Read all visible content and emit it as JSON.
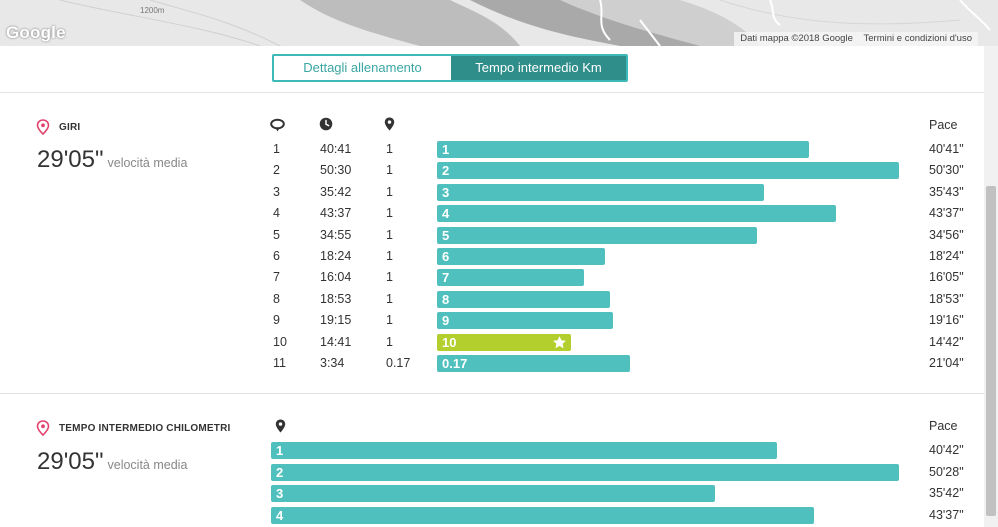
{
  "map": {
    "logo": "Google",
    "altitude_label": "1200m",
    "attribution": "Dati mappa ©2018 Google",
    "terms": "Termini e condizioni d'uso"
  },
  "tabs": [
    {
      "label": "Dettagli allenamento",
      "active": false
    },
    {
      "label": "Tempo intermedio Km",
      "active": true
    }
  ],
  "laps": {
    "title": "GIRI",
    "avg_value": "29'05\"",
    "avg_label": "velocità media",
    "columns": {
      "lap_icon": "lap-icon",
      "time_icon": "clock-icon",
      "distance_icon": "location-pin-icon",
      "pace": "Pace"
    },
    "rows": [
      {
        "lap": "1",
        "time": "40:41",
        "distance": "1",
        "bar_label": "1",
        "pace": "40'41\"",
        "pace_minutes": 40.68,
        "best": false
      },
      {
        "lap": "2",
        "time": "50:30",
        "distance": "1",
        "bar_label": "2",
        "pace": "50'30\"",
        "pace_minutes": 50.5,
        "best": false
      },
      {
        "lap": "3",
        "time": "35:42",
        "distance": "1",
        "bar_label": "3",
        "pace": "35'43\"",
        "pace_minutes": 35.72,
        "best": false
      },
      {
        "lap": "4",
        "time": "43:37",
        "distance": "1",
        "bar_label": "4",
        "pace": "43'37\"",
        "pace_minutes": 43.62,
        "best": false
      },
      {
        "lap": "5",
        "time": "34:55",
        "distance": "1",
        "bar_label": "5",
        "pace": "34'56\"",
        "pace_minutes": 34.93,
        "best": false
      },
      {
        "lap": "6",
        "time": "18:24",
        "distance": "1",
        "bar_label": "6",
        "pace": "18'24\"",
        "pace_minutes": 18.4,
        "best": false
      },
      {
        "lap": "7",
        "time": "16:04",
        "distance": "1",
        "bar_label": "7",
        "pace": "16'05\"",
        "pace_minutes": 16.08,
        "best": false
      },
      {
        "lap": "8",
        "time": "18:53",
        "distance": "1",
        "bar_label": "8",
        "pace": "18'53\"",
        "pace_minutes": 18.88,
        "best": false
      },
      {
        "lap": "9",
        "time": "19:15",
        "distance": "1",
        "bar_label": "9",
        "pace": "19'16\"",
        "pace_minutes": 19.27,
        "best": false
      },
      {
        "lap": "10",
        "time": "14:41",
        "distance": "1",
        "bar_label": "10",
        "pace": "14'42\"",
        "pace_minutes": 14.7,
        "best": true
      },
      {
        "lap": "11",
        "time": "3:34",
        "distance": "0.17",
        "bar_label": "0.17",
        "pace": "21'04\"",
        "pace_minutes": 21.07,
        "best": false
      }
    ]
  },
  "km_splits": {
    "title": "TEMPO INTERMEDIO CHILOMETRI",
    "avg_value": "29'05\"",
    "avg_label": "velocità media",
    "columns": {
      "distance_icon": "location-pin-icon",
      "pace": "Pace"
    },
    "rows": [
      {
        "bar_label": "1",
        "pace": "40'42\"",
        "pace_minutes": 40.7
      },
      {
        "bar_label": "2",
        "pace": "50'28\"",
        "pace_minutes": 50.47
      },
      {
        "bar_label": "3",
        "pace": "35'42\"",
        "pace_minutes": 35.7
      },
      {
        "bar_label": "4",
        "pace": "43'37\"",
        "pace_minutes": 43.62
      }
    ]
  },
  "colors": {
    "accent": "#3dbab7",
    "tab_active": "#2f8d8a",
    "bar": "#4fc0bd",
    "bar_best": "#b3cf2d",
    "pin": "#e2436d"
  }
}
